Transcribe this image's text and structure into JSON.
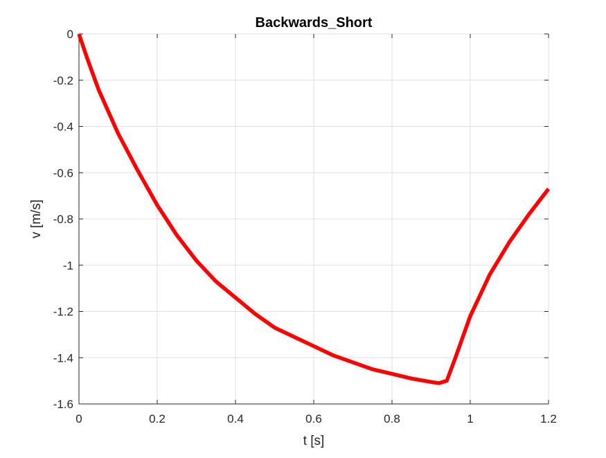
{
  "chart_data": {
    "type": "line",
    "title": "Backwards_Short",
    "xlabel": "t [s]",
    "ylabel": "v [m/s]",
    "xlim": [
      0,
      1.2
    ],
    "ylim": [
      -1.6,
      0
    ],
    "xticks": [
      "0",
      "0.2",
      "0.4",
      "0.6",
      "0.8",
      "1",
      "1.2"
    ],
    "yticks": [
      "0",
      "-0.2",
      "-0.4",
      "-0.6",
      "-0.8",
      "-1",
      "-1.2",
      "-1.4",
      "-1.6"
    ],
    "grid": true,
    "series": [
      {
        "color": "#ff0000",
        "x": [
          0,
          0.02,
          0.05,
          0.1,
          0.15,
          0.2,
          0.25,
          0.3,
          0.35,
          0.4,
          0.45,
          0.5,
          0.55,
          0.6,
          0.65,
          0.7,
          0.75,
          0.8,
          0.85,
          0.9,
          0.92,
          0.94,
          0.96,
          1.0,
          1.05,
          1.1,
          1.15,
          1.2
        ],
        "y": [
          0,
          -0.1,
          -0.24,
          -0.43,
          -0.59,
          -0.74,
          -0.87,
          -0.98,
          -1.07,
          -1.14,
          -1.21,
          -1.27,
          -1.31,
          -1.35,
          -1.39,
          -1.42,
          -1.45,
          -1.47,
          -1.49,
          -1.505,
          -1.51,
          -1.5,
          -1.41,
          -1.22,
          -1.04,
          -0.9,
          -0.78,
          -0.67
        ]
      }
    ]
  }
}
